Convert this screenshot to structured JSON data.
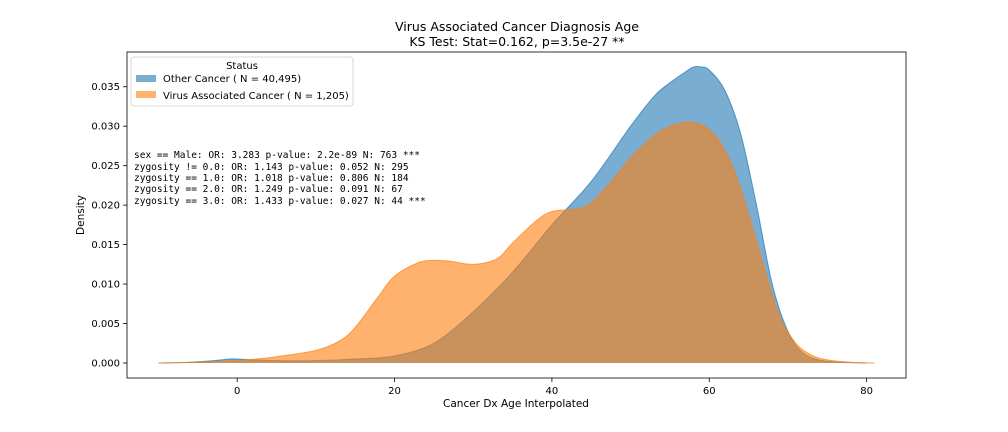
{
  "chart_data": {
    "type": "area",
    "title": "Virus Associated Cancer Diagnosis Age",
    "subtitle": "KS Test: Stat=0.162, p=3.5e-27 **",
    "xlabel": "Cancer Dx Age Interpolated",
    "ylabel": "Density",
    "xlim": [
      -14,
      85
    ],
    "ylim": [
      -0.0019,
      0.0394
    ],
    "xticks": [
      0,
      20,
      40,
      60,
      80
    ],
    "xtick_labels": [
      "0",
      "20",
      "40",
      "60",
      "80"
    ],
    "yticks": [
      0.0,
      0.005,
      0.01,
      0.015,
      0.02,
      0.025,
      0.03,
      0.035
    ],
    "ytick_labels": [
      "0.000",
      "0.005",
      "0.010",
      "0.015",
      "0.020",
      "0.025",
      "0.030",
      "0.035"
    ],
    "grid": false,
    "legend": {
      "title": "Status",
      "placement": "top-left"
    },
    "series": [
      {
        "name": "Other Cancer ( N = 40,495)",
        "color": "#1f77b4",
        "x": [
          -10,
          -6,
          -3,
          -1,
          0,
          2,
          5,
          10,
          15,
          20,
          25,
          30,
          35,
          40,
          45,
          50,
          53,
          55,
          57,
          58,
          59,
          60,
          62,
          64,
          66,
          68,
          70,
          72,
          75,
          80
        ],
        "y": [
          0.0,
          0.0001,
          0.0003,
          0.0005,
          0.0005,
          0.0004,
          0.0003,
          0.0003,
          0.0005,
          0.0009,
          0.0025,
          0.0065,
          0.0115,
          0.0175,
          0.023,
          0.03,
          0.0338,
          0.0355,
          0.0369,
          0.0375,
          0.0375,
          0.0371,
          0.0345,
          0.029,
          0.02,
          0.01,
          0.004,
          0.0012,
          0.0002,
          0.0
        ]
      },
      {
        "name": "Virus Associated Cancer ( N = 1,205)",
        "color": "#ff7f0e",
        "x": [
          -10,
          -5,
          0,
          5,
          10,
          13,
          15,
          18,
          20,
          23,
          25,
          27,
          30,
          33,
          35,
          38,
          40,
          43,
          45,
          48,
          50,
          53,
          55,
          57,
          59,
          61,
          63,
          65,
          67,
          69,
          71,
          73,
          75,
          78,
          81
        ],
        "y": [
          0.0,
          0.0001,
          0.0003,
          0.0008,
          0.0016,
          0.0028,
          0.0045,
          0.0085,
          0.011,
          0.0127,
          0.013,
          0.0129,
          0.0125,
          0.0132,
          0.0152,
          0.018,
          0.0192,
          0.0195,
          0.0203,
          0.0235,
          0.026,
          0.0288,
          0.03,
          0.0305,
          0.0302,
          0.0285,
          0.0248,
          0.0188,
          0.012,
          0.0058,
          0.0025,
          0.001,
          0.0004,
          0.0001,
          0.0
        ]
      }
    ],
    "annotations": [
      "sex == Male: OR: 3.283 p-value: 2.2e-89 N: 763 ***",
      "zygosity != 0.0: OR: 1.143 p-value: 0.052 N: 295",
      "zygosity == 1.0: OR: 1.018 p-value: 0.806 N: 184",
      "zygosity == 2.0: OR: 1.249 p-value: 0.091 N: 67",
      "zygosity == 3.0: OR: 1.433 p-value: 0.027 N: 44 ***"
    ]
  }
}
